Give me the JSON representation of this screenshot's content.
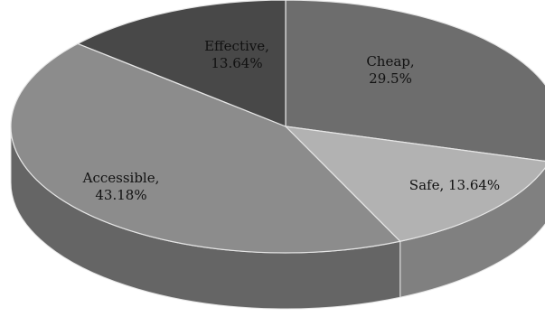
{
  "chart_data": {
    "type": "pie",
    "style": "3d",
    "title": "",
    "slices": [
      {
        "category": "Cheap",
        "value": 29.5,
        "label_line1": "Cheap,",
        "label_line2": "29.5%",
        "color": "#6d6d6d"
      },
      {
        "category": "Safe",
        "value": 13.64,
        "label_line1": "Safe, 13.64%",
        "label_line2": "",
        "color": "#b2b2b2"
      },
      {
        "category": "Accessible",
        "value": 43.18,
        "label_line1": "Accessible,",
        "label_line2": "43.18%",
        "color": "#8c8c8c"
      },
      {
        "category": "Effective",
        "value": 13.64,
        "label_line1": "Effective,",
        "label_line2": "13.64%",
        "color": "#484848"
      }
    ],
    "legend": "none"
  }
}
